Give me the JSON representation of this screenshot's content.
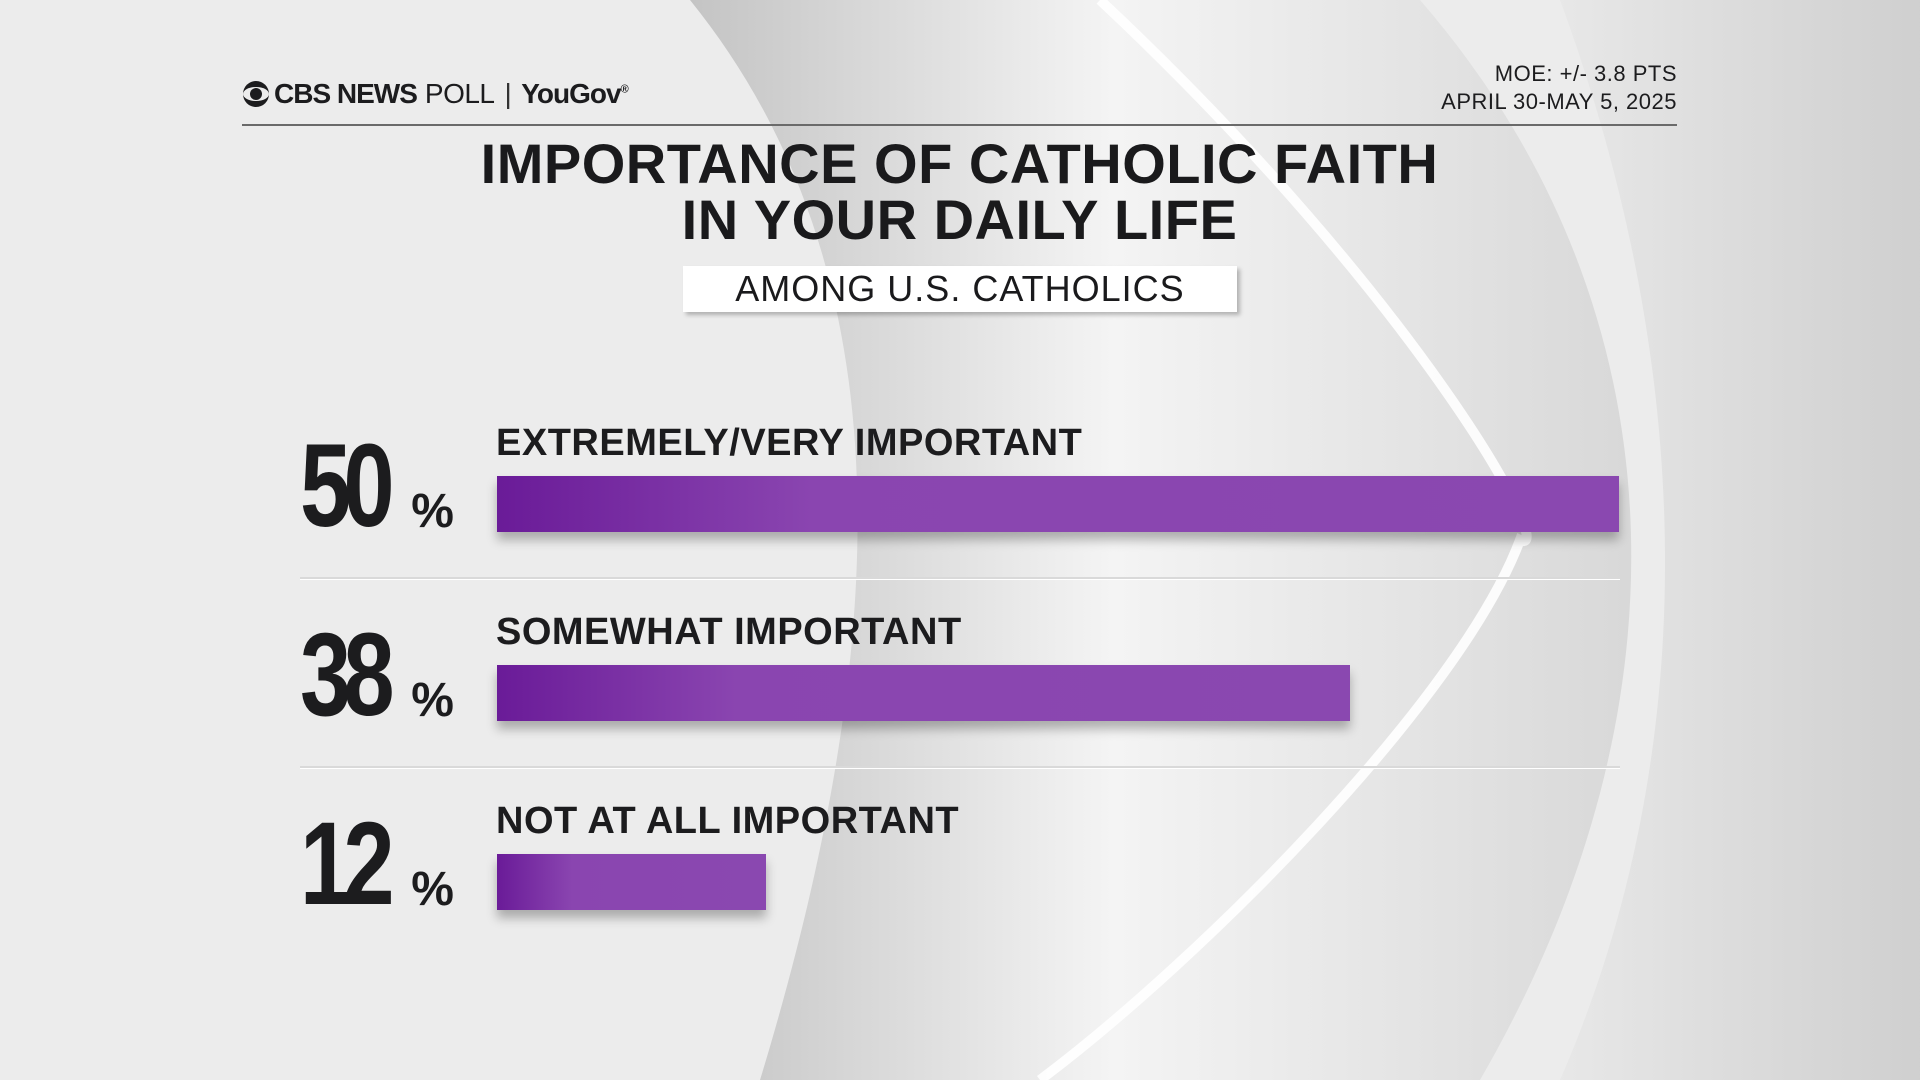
{
  "header": {
    "brand_cbs": "CBS NEWS",
    "brand_poll": "POLL",
    "brand_separator": "|",
    "brand_partner": "YouGov",
    "moe": "MOE: +/- 3.8 PTS",
    "dates": "APRIL 30-MAY 5, 2025"
  },
  "chart_data": {
    "type": "bar",
    "orientation": "horizontal",
    "title_line1": "IMPORTANCE OF CATHOLIC FAITH",
    "title_line2": "IN YOUR DAILY LIFE",
    "subtitle": "AMONG U.S. CATHOLICS",
    "categories": [
      "EXTREMELY/VERY IMPORTANT",
      "SOMEWHAT IMPORTANT",
      "NOT AT ALL IMPORTANT"
    ],
    "values": [
      50,
      38,
      12
    ],
    "value_labels": [
      "50",
      "38",
      "12"
    ],
    "unit": "%",
    "xlim": [
      0,
      50
    ],
    "grid": false,
    "legend": "none",
    "bar_color": "#8a48b0"
  }
}
